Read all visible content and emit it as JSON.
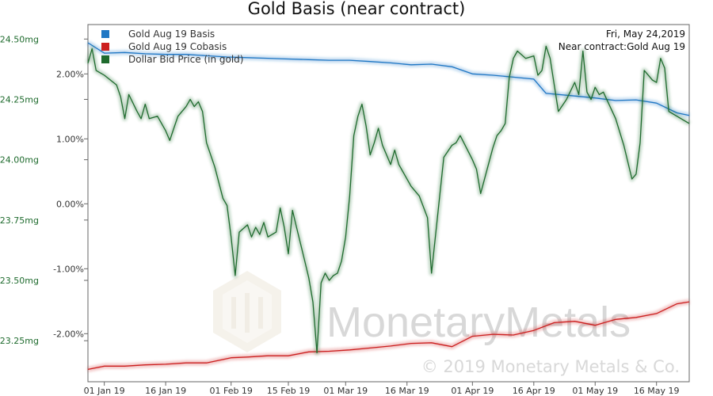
{
  "chart_data": {
    "type": "line",
    "title": "Gold Basis (near contract)",
    "annotation": {
      "date": "Fri, May 24,2019",
      "contract": "Near contract:Gold Aug 19"
    },
    "watermark": {
      "brand": "MonetaryMetals",
      "copyright": "© 2019 Monetary Metals & Co."
    },
    "left_axis": {
      "ticks": [
        "24.50mg",
        "24.25mg",
        "24.00mg",
        "23.75mg",
        "23.50mg",
        "23.25mg"
      ],
      "values": [
        24.5,
        24.25,
        24.0,
        23.75,
        23.5,
        23.25
      ],
      "ylim": [
        23.08,
        24.56
      ]
    },
    "right_axis": {
      "ticks": [
        "2.00%",
        "1.00%",
        "0.00%",
        "-1.00%",
        "-2.00%"
      ],
      "values": [
        2.0,
        1.0,
        0.0,
        -1.0,
        -2.0
      ],
      "ylim": [
        -2.74,
        2.76
      ]
    },
    "x_axis": {
      "ticks": [
        "01 Jan 19",
        "16 Jan 19",
        "01 Feb 19",
        "15 Feb 19",
        "01 Mar 19",
        "16 Mar 19",
        "01 Apr 19",
        "16 Apr 19",
        "01 May 19",
        "16 May 19"
      ],
      "tick_days": [
        0,
        15,
        31,
        45,
        59,
        74,
        90,
        105,
        120,
        135
      ],
      "xlim": [
        -4,
        143
      ]
    },
    "colors": {
      "basis": "#1f77c4",
      "cobasis": "#cc1f1f",
      "price": "#1f6b2e"
    },
    "series": [
      {
        "name": "Gold Aug 19 Basis",
        "axis": "right",
        "points": [
          [
            -4,
            2.48
          ],
          [
            0,
            2.32
          ],
          [
            5,
            2.33
          ],
          [
            10,
            2.31
          ],
          [
            15,
            2.3
          ],
          [
            20,
            2.3
          ],
          [
            25,
            2.28
          ],
          [
            30,
            2.26
          ],
          [
            35,
            2.25
          ],
          [
            40,
            2.24
          ],
          [
            45,
            2.23
          ],
          [
            50,
            2.22
          ],
          [
            55,
            2.21
          ],
          [
            60,
            2.21
          ],
          [
            65,
            2.19
          ],
          [
            70,
            2.17
          ],
          [
            75,
            2.14
          ],
          [
            80,
            2.15
          ],
          [
            85,
            2.11
          ],
          [
            90,
            2.0
          ],
          [
            95,
            1.98
          ],
          [
            100,
            1.95
          ],
          [
            105,
            1.92
          ],
          [
            108,
            1.7
          ],
          [
            115,
            1.66
          ],
          [
            120,
            1.63
          ],
          [
            125,
            1.59
          ],
          [
            130,
            1.6
          ],
          [
            135,
            1.55
          ],
          [
            140,
            1.4
          ],
          [
            143,
            1.36
          ]
        ]
      },
      {
        "name": "Gold Aug 19 Cobasis",
        "axis": "right",
        "points": [
          [
            -4,
            -2.55
          ],
          [
            0,
            -2.5
          ],
          [
            5,
            -2.5
          ],
          [
            10,
            -2.48
          ],
          [
            15,
            -2.47
          ],
          [
            20,
            -2.45
          ],
          [
            25,
            -2.45
          ],
          [
            31,
            -2.37
          ],
          [
            35,
            -2.36
          ],
          [
            40,
            -2.34
          ],
          [
            45,
            -2.34
          ],
          [
            50,
            -2.28
          ],
          [
            55,
            -2.27
          ],
          [
            60,
            -2.25
          ],
          [
            65,
            -2.22
          ],
          [
            70,
            -2.19
          ],
          [
            75,
            -2.15
          ],
          [
            80,
            -2.14
          ],
          [
            85,
            -2.2
          ],
          [
            90,
            -2.04
          ],
          [
            95,
            -2.01
          ],
          [
            100,
            -2.02
          ],
          [
            105,
            -1.95
          ],
          [
            110,
            -1.83
          ],
          [
            115,
            -1.81
          ],
          [
            120,
            -1.87
          ],
          [
            125,
            -1.78
          ],
          [
            130,
            -1.75
          ],
          [
            135,
            -1.69
          ],
          [
            140,
            -1.54
          ],
          [
            143,
            -1.51
          ]
        ]
      },
      {
        "name": "Dollar Bid Price (in gold)",
        "axis": "left",
        "points": [
          [
            -4,
            24.4
          ],
          [
            -3,
            24.46
          ],
          [
            -2,
            24.37
          ],
          [
            0,
            24.35
          ],
          [
            3,
            24.31
          ],
          [
            4,
            24.26
          ],
          [
            5,
            24.17
          ],
          [
            6,
            24.27
          ],
          [
            8,
            24.2
          ],
          [
            9,
            24.17
          ],
          [
            10,
            24.23
          ],
          [
            11,
            24.17
          ],
          [
            13,
            24.18
          ],
          [
            15,
            24.12
          ],
          [
            16,
            24.08
          ],
          [
            17,
            24.13
          ],
          [
            18,
            24.18
          ],
          [
            20,
            24.22
          ],
          [
            21,
            24.25
          ],
          [
            22,
            24.22
          ],
          [
            23,
            24.24
          ],
          [
            24,
            24.2
          ],
          [
            25,
            24.07
          ],
          [
            27,
            23.97
          ],
          [
            29,
            23.84
          ],
          [
            30,
            23.81
          ],
          [
            31,
            23.68
          ],
          [
            32,
            23.52
          ],
          [
            33,
            23.7
          ],
          [
            35,
            23.73
          ],
          [
            36,
            23.68
          ],
          [
            37,
            23.72
          ],
          [
            38,
            23.69
          ],
          [
            39,
            23.74
          ],
          [
            40,
            23.68
          ],
          [
            42,
            23.7
          ],
          [
            43,
            23.8
          ],
          [
            44,
            23.72
          ],
          [
            45,
            23.61
          ],
          [
            46,
            23.79
          ],
          [
            47,
            23.72
          ],
          [
            49,
            23.58
          ],
          [
            50,
            23.51
          ],
          [
            51,
            23.41
          ],
          [
            52,
            23.2
          ],
          [
            53,
            23.49
          ],
          [
            54,
            23.53
          ],
          [
            55,
            23.5
          ],
          [
            56,
            23.52
          ],
          [
            57,
            23.53
          ],
          [
            58,
            23.58
          ],
          [
            59,
            23.68
          ],
          [
            60,
            23.85
          ],
          [
            61,
            24.1
          ],
          [
            62,
            24.18
          ],
          [
            63,
            24.23
          ],
          [
            64,
            24.14
          ],
          [
            65,
            24.02
          ],
          [
            66,
            24.07
          ],
          [
            67,
            24.13
          ],
          [
            68,
            24.06
          ],
          [
            70,
            23.98
          ],
          [
            71,
            24.04
          ],
          [
            72,
            23.98
          ],
          [
            75,
            23.89
          ],
          [
            77,
            23.85
          ],
          [
            79,
            23.76
          ],
          [
            80,
            23.53
          ],
          [
            83,
            24.01
          ],
          [
            85,
            24.06
          ],
          [
            86,
            24.07
          ],
          [
            87,
            24.1
          ],
          [
            90,
            24.0
          ],
          [
            91,
            23.96
          ],
          [
            92,
            23.86
          ],
          [
            95,
            24.05
          ],
          [
            96,
            24.1
          ],
          [
            97,
            24.12
          ],
          [
            98,
            24.15
          ],
          [
            99,
            24.34
          ],
          [
            100,
            24.42
          ],
          [
            101,
            24.45
          ],
          [
            103,
            24.42
          ],
          [
            105,
            24.43
          ],
          [
            106,
            24.35
          ],
          [
            107,
            24.37
          ],
          [
            108,
            24.47
          ],
          [
            109,
            24.42
          ],
          [
            110,
            24.31
          ],
          [
            111,
            24.2
          ],
          [
            113,
            24.25
          ],
          [
            115,
            24.32
          ],
          [
            116,
            24.27
          ],
          [
            117,
            24.45
          ],
          [
            118,
            24.28
          ],
          [
            119,
            24.25
          ],
          [
            120,
            24.3
          ],
          [
            121,
            24.27
          ],
          [
            122,
            24.28
          ],
          [
            125,
            24.17
          ],
          [
            127,
            24.06
          ],
          [
            129,
            23.92
          ],
          [
            130,
            23.94
          ],
          [
            131,
            24.07
          ],
          [
            132,
            24.37
          ],
          [
            134,
            24.33
          ],
          [
            135,
            24.32
          ],
          [
            136,
            24.42
          ],
          [
            137,
            24.38
          ],
          [
            138,
            24.2
          ],
          [
            143,
            24.15
          ]
        ]
      }
    ]
  }
}
